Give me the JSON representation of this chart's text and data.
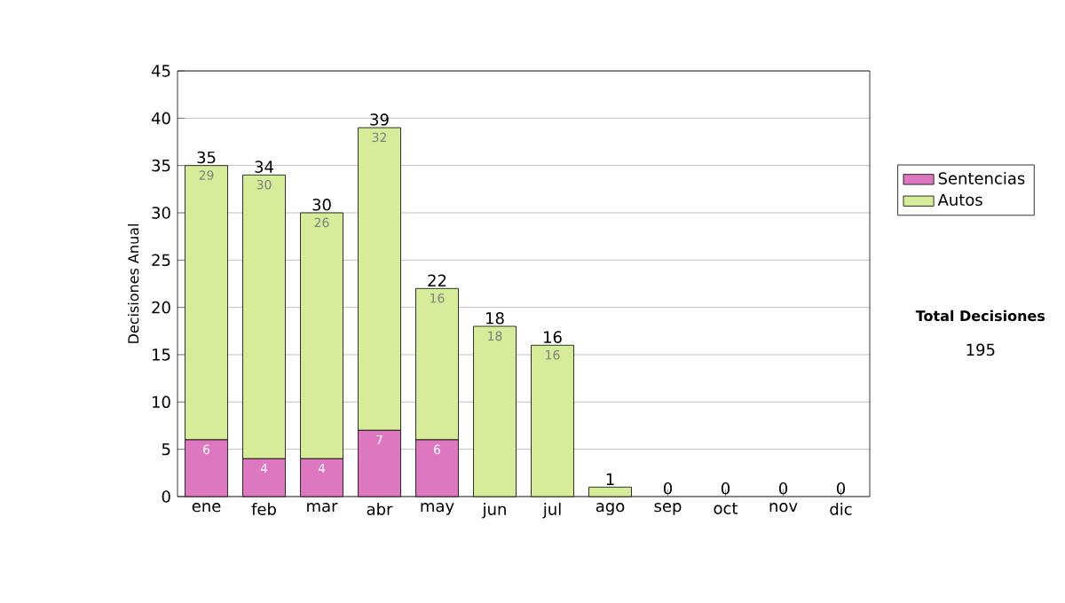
{
  "chart_data": {
    "type": "bar",
    "stacked": true,
    "ylabel": "Decisiones Anual",
    "categories": [
      "ene",
      "feb",
      "mar",
      "abr",
      "may",
      "jun",
      "jul",
      "ago",
      "sep",
      "oct",
      "nov",
      "dic"
    ],
    "series": [
      {
        "name": "Sentencias",
        "color": "#dd77c0",
        "values": [
          6,
          4,
          4,
          7,
          6,
          0,
          0,
          0,
          0,
          0,
          0,
          0
        ],
        "value_labels": [
          "6",
          "4",
          "4",
          "7",
          "6",
          null,
          null,
          null,
          null,
          null,
          null,
          null
        ]
      },
      {
        "name": "Autos",
        "color": "#d6ec98",
        "values": [
          29,
          30,
          26,
          32,
          16,
          18,
          16,
          1,
          0,
          0,
          0,
          0
        ],
        "value_labels": [
          "29",
          "30",
          "26",
          "32",
          "16",
          "18",
          "16",
          null,
          null,
          null,
          null,
          null
        ]
      }
    ],
    "totals": [
      "35",
      "34",
      "30",
      "39",
      "22",
      "18",
      "16",
      "1",
      "0",
      "0",
      "0",
      "0"
    ],
    "ylim": [
      0,
      45
    ],
    "yticks": [
      0,
      5,
      10,
      15,
      20,
      25,
      30,
      35,
      40,
      45
    ],
    "grid": "y",
    "legend": "right",
    "annotations": [
      "Total Decisiones",
      "195"
    ]
  }
}
